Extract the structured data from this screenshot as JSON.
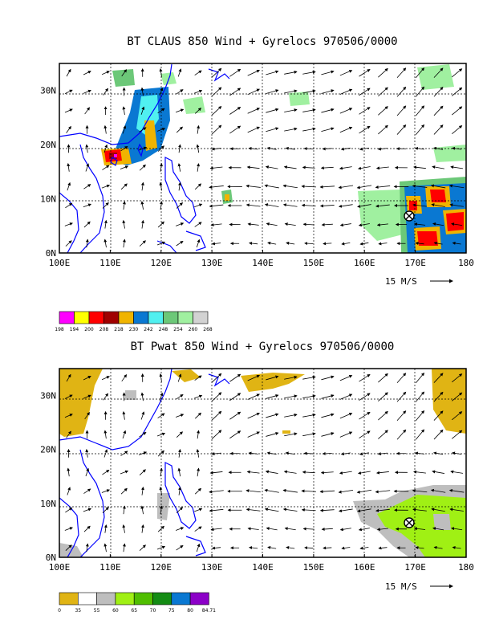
{
  "panel1": {
    "title": "BT CLAUS 850 Wind + Gyrelocs 970506/0000",
    "scale_label": "15 M/S",
    "legend": {
      "labels": [
        "198",
        "194",
        "200",
        "208",
        "218",
        "230",
        "242",
        "248",
        "254",
        "260",
        "268"
      ],
      "colors": [
        "#ff00ff",
        "#ffff00",
        "#ff0000",
        "#a00000",
        "#f0b400",
        "#0a78d2",
        "#50f0f0",
        "#6cc878",
        "#a0f0a0",
        "#d2d2d2"
      ]
    }
  },
  "panel2": {
    "title": "BT Pwat 850 Wind + Gyrelocs 970506/0000",
    "scale_label": "15 M/S",
    "legend": {
      "labels": [
        "0",
        "35",
        "55",
        "60",
        "65",
        "70",
        "75",
        "80",
        "84.71"
      ],
      "colors": [
        "#e0b414",
        "#ffffff",
        "#bebebe",
        "#a0f014",
        "#50be00",
        "#148c14",
        "#0a78d2",
        "#8c00c8"
      ]
    }
  },
  "axes": {
    "x_ticks": [
      "100E",
      "110E",
      "120E",
      "130E",
      "140E",
      "150E",
      "160E",
      "170E",
      "180"
    ],
    "y_ticks": [
      "0N",
      "10N",
      "20N",
      "30N"
    ]
  },
  "gyre_location": {
    "lon": 168.5,
    "lat": 7.8
  }
}
